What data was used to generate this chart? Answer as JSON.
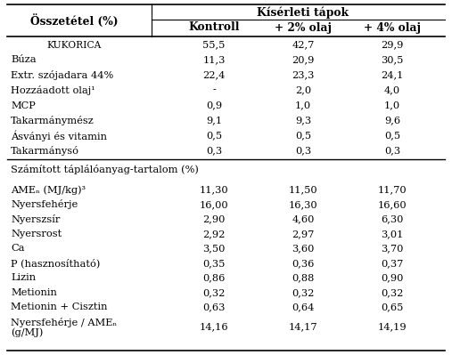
{
  "title_header": "Kísérleti tápok",
  "col_header_left": "Összetétel (%)",
  "col_headers": [
    "Kontroll",
    "+ 2% olaj",
    "+ 4% olaj"
  ],
  "section1_rows": [
    [
      "KUKORICA",
      "55,5",
      "42,7",
      "29,9"
    ],
    [
      "Búza",
      "11,3",
      "20,9",
      "30,5"
    ],
    [
      "Extr. szójadara 44%",
      "22,4",
      "23,3",
      "24,1"
    ],
    [
      "Hozzáadott olaj¹",
      "-",
      "2,0",
      "4,0"
    ],
    [
      "MCP",
      "0,9",
      "1,0",
      "1,0"
    ],
    [
      "Takarmánymész",
      "9,1",
      "9,3",
      "9,6"
    ],
    [
      "Ásványi és vitamin",
      "0,5",
      "0,5",
      "0,5"
    ],
    [
      "Takarmánysó",
      "0,3",
      "0,3",
      "0,3"
    ]
  ],
  "section2_header": "Számított táplálóanyag-tartalom (%)",
  "section2_rows": [
    [
      "AMEₙ (MJ/kg)³",
      "11,30",
      "11,50",
      "11,70"
    ],
    [
      "Nyersfehérje",
      "16,00",
      "16,30",
      "16,60"
    ],
    [
      "Nyerszsír",
      "2,90",
      "4,60",
      "6,30"
    ],
    [
      "Nyersrost",
      "2,92",
      "2,97",
      "3,01"
    ],
    [
      "Ca",
      "3,50",
      "3,60",
      "3,70"
    ],
    [
      "P (hasznosítható)",
      "0,35",
      "0,36",
      "0,37"
    ],
    [
      "Lizin",
      "0,86",
      "0,88",
      "0,90"
    ],
    [
      "Metionin",
      "0,32",
      "0,32",
      "0,32"
    ],
    [
      "Metionin + Cisztin",
      "0,63",
      "0,64",
      "0,65"
    ],
    [
      "Nyersfehérje / AMEₙ\n(g/MJ)",
      "14,16",
      "14,17",
      "14,19"
    ]
  ],
  "bg_color": "#ffffff",
  "text_color": "#000000",
  "font_size": 8.2,
  "header_font_size": 8.8
}
